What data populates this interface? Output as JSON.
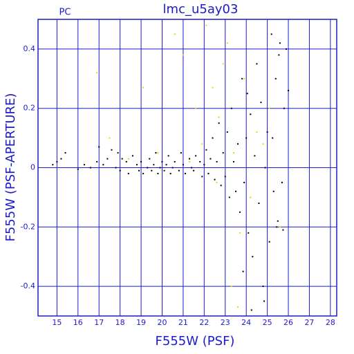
{
  "chart_data": {
    "type": "scatter",
    "title": "lmc_u5ay03",
    "annotation": "PC",
    "xlabel": "F555W (PSF)",
    "ylabel": "F555W (PSF-APERTURE)",
    "xlim": [
      14.1,
      28.3
    ],
    "ylim": [
      -0.5,
      0.5
    ],
    "xticks": [
      15,
      16,
      17,
      18,
      19,
      20,
      21,
      22,
      23,
      24,
      25,
      26,
      27,
      28
    ],
    "yticks": [
      -0.4,
      -0.2,
      0,
      0.2,
      0.4
    ],
    "grid": true,
    "series": [
      {
        "color": "#f0d000",
        "x": [
          16.9,
          17.5,
          18.4,
          19.1,
          19.8,
          20.6,
          21.0,
          21.3,
          21.6,
          22.1,
          22.4,
          22.7,
          22.9,
          23.1,
          23.4,
          23.7,
          23.9,
          24.2,
          24.5,
          24.8,
          25.1,
          23.3,
          22.6,
          21.9,
          23.6,
          25.6
        ],
        "values": [
          0.32,
          0.1,
          0.03,
          0.27,
          0.05,
          0.45,
          0.38,
          0.02,
          0.2,
          0.48,
          0.27,
          0.17,
          0.35,
          0.42,
          0.05,
          -0.22,
          0.3,
          -0.1,
          0.12,
          0.08,
          0.2,
          -0.4,
          -0.05,
          0.08,
          -0.47,
          -0.2
        ]
      },
      {
        "color": "#000000",
        "x": [
          14.8,
          15.0,
          15.2,
          15.4,
          16.0,
          16.3,
          16.6,
          16.9,
          17.0,
          17.2,
          17.4,
          17.6,
          17.8,
          17.9,
          18.0,
          18.1,
          18.3,
          18.4,
          18.6,
          18.8,
          18.9,
          19.0,
          19.1,
          19.3,
          19.4,
          19.5,
          19.6,
          19.7,
          19.8,
          19.9,
          20.0,
          20.1,
          20.2,
          20.3,
          20.4,
          20.5,
          20.6,
          20.8,
          20.9,
          21.0,
          21.1,
          21.3,
          21.4,
          21.5,
          21.6,
          21.8,
          21.9,
          22.0,
          22.1,
          22.2,
          22.3,
          22.4,
          22.5,
          22.6,
          22.7,
          22.8,
          22.9,
          23.0,
          23.1,
          23.2,
          23.3,
          23.4,
          23.5,
          23.6,
          23.7,
          23.8,
          23.9,
          24.0,
          24.1,
          24.2,
          24.3,
          24.4,
          24.5,
          24.6,
          24.7,
          24.8,
          24.9,
          25.0,
          25.1,
          25.2,
          25.3,
          25.4,
          25.5,
          25.6,
          25.7,
          25.8,
          25.9,
          26.0,
          25.45,
          25.55,
          24.85,
          24.25,
          23.85,
          25.75,
          25.25,
          24.05
        ],
        "values": [
          0.01,
          0.02,
          0.03,
          0.05,
          -0.005,
          0.01,
          0,
          0.02,
          0.07,
          0.01,
          0.03,
          0.06,
          0.0,
          0.05,
          -0.01,
          0.03,
          0.02,
          -0.02,
          0.04,
          0.01,
          -0.01,
          0.02,
          -0.02,
          0.0,
          0.03,
          -0.01,
          0.01,
          0.05,
          -0.02,
          0.0,
          0.02,
          -0.01,
          0.01,
          0.04,
          -0.02,
          0.0,
          0.02,
          -0.01,
          0.05,
          0.01,
          -0.02,
          0.03,
          0.0,
          -0.01,
          0.04,
          0.02,
          -0.03,
          0.01,
          0.06,
          -0.02,
          0.03,
          0.1,
          -0.04,
          0.02,
          0.15,
          -0.06,
          0.05,
          -0.03,
          0.12,
          -0.1,
          0.2,
          0.02,
          -0.08,
          0.08,
          -0.15,
          0.3,
          -0.05,
          0.1,
          -0.22,
          0.18,
          -0.3,
          0.04,
          0.35,
          -0.12,
          0.22,
          -0.4,
          0.0,
          0.12,
          -0.25,
          0.45,
          -0.08,
          0.3,
          -0.18,
          0.42,
          -0.05,
          0.2,
          0.4,
          0.26,
          -0.2,
          0.38,
          -0.45,
          -0.48,
          -0.35,
          -0.21,
          0.1,
          0.25
        ]
      }
    ]
  }
}
